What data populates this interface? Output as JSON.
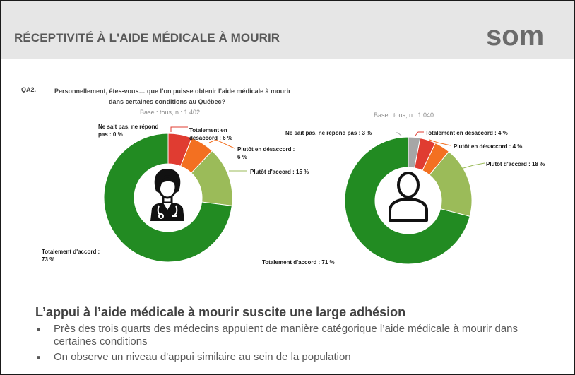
{
  "header": {
    "title": "RÉCEPTIVITÉ À L'AIDE MÉDICALE À MOURIR"
  },
  "logo": {
    "text": "som"
  },
  "question": {
    "number": "QA2.",
    "line1": "Personnellement, êtes-vous… que l’on puisse obtenir l’aide médicale à mourir",
    "line2": "dans certaines conditions au Québec?"
  },
  "chart_data": [
    {
      "type": "pie",
      "donut": true,
      "base_label": "Base : tous, n : 1 402",
      "center_icon": "doctor-icon",
      "categories": [
        "Ne sait pas, ne répond pas",
        "Totalement en désaccord",
        "Plutôt en désaccord",
        "Plutôt d'accord",
        "Totalement d'accord"
      ],
      "values": [
        0,
        6,
        6,
        15,
        73
      ],
      "colors": [
        "#a6a6a6",
        "#e03c31",
        "#f37021",
        "#9bbb59",
        "#228b22"
      ],
      "labels": {
        "ns": [
          "Ne sait pas, ne répond",
          "pas : 0 %"
        ],
        "td": [
          "Totalement en",
          "désaccord : 6 %"
        ],
        "pd": [
          "Plutôt en désaccord :",
          "6 %"
        ],
        "pa": [
          "Plutôt d'accord : 15 %"
        ],
        "ta": [
          "Totalement d'accord :",
          "73 %"
        ]
      }
    },
    {
      "type": "pie",
      "donut": true,
      "base_label": "Base : tous, n : 1 040",
      "center_icon": "person-icon",
      "categories": [
        "Ne sait pas, ne répond pas",
        "Totalement en désaccord",
        "Plutôt en désaccord",
        "Plutôt d'accord",
        "Totalement d'accord"
      ],
      "values": [
        3,
        4,
        4,
        18,
        71
      ],
      "colors": [
        "#a6a6a6",
        "#e03c31",
        "#f37021",
        "#9bbb59",
        "#228b22"
      ],
      "labels": {
        "ns": [
          "Ne sait pas, ne répond pas : 3 %"
        ],
        "td": [
          "Totalement en désaccord : 4 %"
        ],
        "pd": [
          "Plutôt en désaccord : 4 %"
        ],
        "pa": [
          "Plutôt d'accord : 18 %"
        ],
        "ta": [
          "Totalement d'accord : 71 %"
        ]
      }
    }
  ],
  "summary": {
    "title": "L’appui à l’aide médicale à mourir suscite une large adhésion",
    "bullets": [
      "Près des trois quarts des médecins appuient de manière catégorique l’aide médicale à mourir dans certaines conditions",
      "On observe un niveau d'appui similaire au sein de la population"
    ]
  }
}
